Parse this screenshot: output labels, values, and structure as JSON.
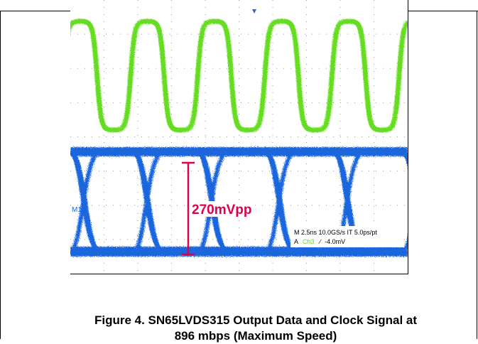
{
  "scope": {
    "channel_label": "M1",
    "amplitude_label": "270mVpp",
    "readout_line1": "M 2.5ns 10.0GS/s    IT 5.0ps/pt",
    "readout_line2_prefix": "A",
    "readout_line2_channel": "Ch3",
    "readout_line2_slope": "∕",
    "readout_line2_level": "-4.0mV",
    "colors": {
      "clock_trace": "#66dd22",
      "data_trace": "#1a66dd",
      "amplitude_marker": "#e0004a",
      "grid": "#9a9a9a",
      "trigger_marker": "#3366cc"
    }
  },
  "caption": {
    "line1": "Figure 4. SN65LVDS315 Output Data and Clock Signal at",
    "line2": "896 mbps (Maximum Speed)"
  }
}
